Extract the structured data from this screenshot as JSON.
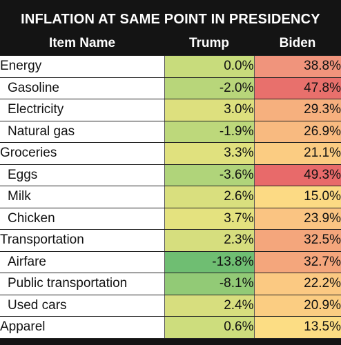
{
  "title": "INFLATION AT SAME POINT IN PRESIDENCY",
  "headers": {
    "name": "Item Name",
    "trump": "Trump",
    "biden": "Biden"
  },
  "rows": [
    {
      "name": "Energy",
      "sub": false,
      "trump": "0.0%",
      "biden": "38.8%",
      "trump_color": "#c8dc7c",
      "biden_color": "#f0947c"
    },
    {
      "name": "Gasoline",
      "sub": true,
      "trump": "-2.0%",
      "biden": "47.8%",
      "trump_color": "#b8d67a",
      "biden_color": "#e8706c"
    },
    {
      "name": "Electricity",
      "sub": true,
      "trump": "3.0%",
      "biden": "29.3%",
      "trump_color": "#dde07e",
      "biden_color": "#f6b07e"
    },
    {
      "name": "Natural gas",
      "sub": true,
      "trump": "-1.9%",
      "biden": "26.9%",
      "trump_color": "#bdd87b",
      "biden_color": "#f8ba80"
    },
    {
      "name": "Groceries",
      "sub": false,
      "trump": "3.3%",
      "biden": "21.1%",
      "trump_color": "#e0e17e",
      "biden_color": "#fbcc82"
    },
    {
      "name": "Eggs",
      "sub": true,
      "trump": "-3.6%",
      "biden": "49.3%",
      "trump_color": "#b0d47a",
      "biden_color": "#e86a6a"
    },
    {
      "name": "Milk",
      "sub": true,
      "trump": "2.6%",
      "biden": "15.0%",
      "trump_color": "#d9df7e",
      "biden_color": "#fcda84"
    },
    {
      "name": "Chicken",
      "sub": true,
      "trump": "3.7%",
      "biden": "23.9%",
      "trump_color": "#e4e27f",
      "biden_color": "#fac482"
    },
    {
      "name": "Transportation",
      "sub": false,
      "trump": "2.3%",
      "biden": "32.5%",
      "trump_color": "#d6de7e",
      "biden_color": "#f4a67c"
    },
    {
      "name": "Airfare",
      "sub": true,
      "trump": "-13.8%",
      "biden": "32.7%",
      "trump_color": "#6fbe72",
      "biden_color": "#f4a67c"
    },
    {
      "name": "Public transportation",
      "sub": true,
      "trump": "-8.1%",
      "biden": "22.2%",
      "trump_color": "#92ca76",
      "biden_color": "#fbc982"
    },
    {
      "name": "Used cars",
      "sub": true,
      "trump": "2.4%",
      "biden": "20.9%",
      "trump_color": "#d7de7e",
      "biden_color": "#fbcd82"
    },
    {
      "name": "Apparel",
      "sub": false,
      "trump": "0.6%",
      "biden": "13.5%",
      "trump_color": "#cddd7d",
      "biden_color": "#fcdd84"
    }
  ]
}
